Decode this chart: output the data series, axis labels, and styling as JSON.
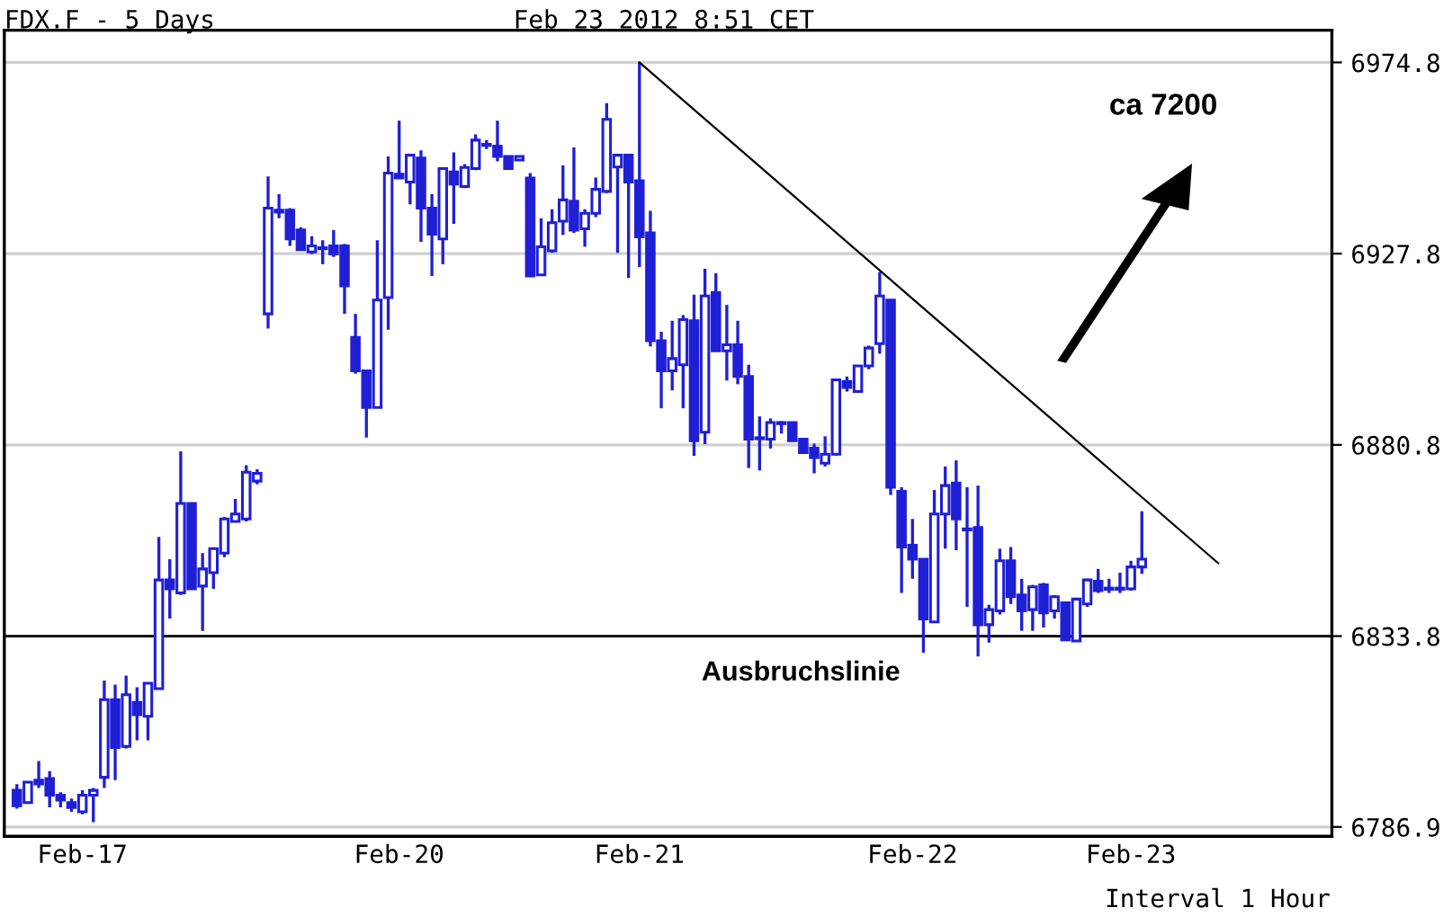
{
  "chart_data": {
    "type": "candlestick",
    "title": "FDX.F - 5 Days",
    "subtitle": "Feb 23 2012 8:51 CET",
    "annotations": [
      "ca 7200",
      "Interval 1 Hour"
    ],
    "categories": [
      null,
      null,
      null,
      null,
      null,
      null,
      "Feb-17",
      null,
      null,
      null,
      null,
      null,
      null,
      null,
      null,
      null,
      null,
      null,
      null,
      null,
      null,
      null,
      null,
      null,
      null,
      null,
      null,
      null,
      null,
      null,
      null,
      null,
      null,
      null,
      null,
      "Feb-20",
      null,
      null,
      null,
      null,
      null,
      null,
      null,
      null,
      null,
      null,
      null,
      null,
      null,
      null,
      null,
      null,
      null,
      null,
      null,
      null,
      null,
      "Feb-21",
      null,
      null,
      null,
      null,
      null,
      null,
      null,
      null,
      null,
      null,
      null,
      null,
      null,
      null,
      null,
      null,
      null,
      null,
      null,
      null,
      null,
      null,
      null,
      null,
      "Feb-22",
      null,
      null,
      null,
      null,
      null,
      null,
      null,
      null,
      null,
      null,
      null,
      null,
      null,
      null,
      null,
      null,
      null,
      null,
      null,
      "Feb-23",
      null,
      null,
      null,
      null,
      null,
      null,
      null,
      null,
      null,
      null,
      null,
      null,
      null,
      null,
      null,
      null,
      null,
      null
    ],
    "color": "#1f1fd6",
    "ohlc": [
      [
        6795.9,
        6797.4,
        6791.4,
        6792.1
      ],
      [
        6792.9,
        6797.9,
        6792.9,
        6797.9
      ],
      [
        6798.4,
        6803.1,
        6796.5,
        6797.5
      ],
      [
        6798.8,
        6800.6,
        6791.7,
        6794.7
      ],
      [
        6794.7,
        6795.4,
        6791.7,
        6793.5
      ],
      [
        6792.9,
        6793.9,
        6790.6,
        6791.7
      ],
      [
        6790.6,
        6795.9,
        6790.0,
        6794.7
      ],
      [
        6794.7,
        6796.5,
        6788.1,
        6795.9
      ],
      [
        6799.1,
        6822.9,
        6796.5,
        6818.2
      ],
      [
        6818.2,
        6821.9,
        6798.4,
        6806.4
      ],
      [
        6806.7,
        6824.1,
        6806.2,
        6819.4
      ],
      [
        6817.5,
        6821.2,
        6808.2,
        6814.5
      ],
      [
        6814.1,
        6822.2,
        6808.2,
        6822.2
      ],
      [
        6820.9,
        6858.2,
        6820.9,
        6847.6
      ],
      [
        6847.6,
        6852.7,
        6838.1,
        6845.4
      ],
      [
        6844.4,
        6879.2,
        6843.9,
        6866.4
      ],
      [
        6866.4,
        6866.4,
        6845.4,
        6845.4
      ],
      [
        6846.1,
        6854.2,
        6835.1,
        6850.3
      ],
      [
        6849.4,
        6855.3,
        6845.4,
        6855.3
      ],
      [
        6854.2,
        6863.1,
        6853.2,
        6862.6
      ],
      [
        6862.0,
        6867.5,
        6862.0,
        6863.8
      ],
      [
        6862.6,
        6875.8,
        6862.0,
        6874.1
      ],
      [
        6871.9,
        6874.8,
        6871.1,
        6873.8
      ],
      [
        6913.0,
        6946.8,
        6909.4,
        6939.0
      ],
      [
        6938.5,
        6942.4,
        6936.5,
        6938.0
      ],
      [
        6938.5,
        6939.0,
        6929.7,
        6931.4
      ],
      [
        6933.6,
        6934.3,
        6928.5,
        6928.8
      ],
      [
        6928.2,
        6932.1,
        6927.7,
        6929.7
      ],
      [
        6929.2,
        6931.1,
        6925.2,
        6929.0
      ],
      [
        6929.7,
        6933.6,
        6927.0,
        6927.7
      ],
      [
        6929.7,
        6930.2,
        6913.0,
        6919.9
      ],
      [
        6907.2,
        6913.0,
        6898.3,
        6899.0
      ],
      [
        6899.0,
        6899.0,
        6882.6,
        6890.0
      ],
      [
        6890.0,
        6931.1,
        6890.0,
        6916.4
      ],
      [
        6917.0,
        6951.7,
        6909.1,
        6947.6
      ],
      [
        6947.3,
        6960.5,
        6946.4,
        6946.4
      ],
      [
        6945.4,
        6952.0,
        6939.9,
        6952.0
      ],
      [
        6951.3,
        6953.2,
        6930.7,
        6939.0
      ],
      [
        6939.0,
        6942.4,
        6922.3,
        6932.6
      ],
      [
        6931.4,
        6949.0,
        6925.2,
        6948.7
      ],
      [
        6947.9,
        6952.7,
        6935.1,
        6944.9
      ],
      [
        6944.3,
        6949.8,
        6943.9,
        6949.0
      ],
      [
        6948.7,
        6957.1,
        6948.3,
        6955.7
      ],
      [
        6954.6,
        6955.7,
        6953.5,
        6954.4
      ],
      [
        6954.2,
        6960.5,
        6950.5,
        6951.7
      ],
      [
        6951.7,
        6951.7,
        6948.7,
        6948.7
      ],
      [
        6950.8,
        6951.7,
        6950.8,
        6951.7
      ],
      [
        6946.4,
        6947.6,
        6922.3,
        6922.3
      ],
      [
        6922.6,
        6936.5,
        6922.6,
        6929.5
      ],
      [
        6928.5,
        6938.7,
        6928.0,
        6935.4
      ],
      [
        6935.8,
        6949.5,
        6932.4,
        6941.0
      ],
      [
        6940.7,
        6953.9,
        6932.9,
        6933.6
      ],
      [
        6933.9,
        6938.7,
        6929.5,
        6937.7
      ],
      [
        6937.7,
        6946.5,
        6936.8,
        6943.6
      ],
      [
        6943.1,
        6964.8,
        6942.7,
        6960.8
      ],
      [
        6949.1,
        6952.0,
        6928.0,
        6952.0
      ],
      [
        6952.0,
        6952.0,
        6921.8,
        6945.4
      ],
      [
        6945.7,
        6974.8,
        6924.5,
        6931.9
      ],
      [
        6932.9,
        6938.3,
        6905.0,
        6906.4
      ],
      [
        6906.4,
        6908.6,
        6889.8,
        6899.0
      ],
      [
        6899.0,
        6911.3,
        6894.2,
        6902.0
      ],
      [
        6900.5,
        6912.7,
        6889.8,
        6911.6
      ],
      [
        6911.3,
        6917.7,
        6878.1,
        6881.8
      ],
      [
        6883.9,
        6924.1,
        6881.0,
        6917.4
      ],
      [
        6918.2,
        6923.0,
        6903.9,
        6903.9
      ],
      [
        6903.9,
        6915.2,
        6896.6,
        6905.4
      ],
      [
        6905.4,
        6911.3,
        6895.7,
        6897.6
      ],
      [
        6897.6,
        6900.5,
        6875.1,
        6882.2
      ],
      [
        6882.5,
        6887.8,
        6874.5,
        6882.3
      ],
      [
        6882.2,
        6887.3,
        6879.9,
        6886.3
      ],
      [
        6886.3,
        6886.6,
        6883.6,
        6886.0
      ],
      [
        6886.3,
        6886.3,
        6881.8,
        6881.8
      ],
      [
        6882.2,
        6882.5,
        6878.8,
        6878.9
      ],
      [
        6880.0,
        6881.1,
        6873.8,
        6877.7
      ],
      [
        6876.3,
        6882.9,
        6875.5,
        6878.5
      ],
      [
        6878.5,
        6897.1,
        6878.2,
        6896.8
      ],
      [
        6896.4,
        6897.6,
        6893.9,
        6894.9
      ],
      [
        6893.9,
        6900.2,
        6893.9,
        6900.2
      ],
      [
        6900.2,
        6905.2,
        6899.4,
        6904.6
      ],
      [
        6905.7,
        6923.3,
        6903.2,
        6917.4
      ],
      [
        6916.4,
        6916.4,
        6868.5,
        6870.4
      ],
      [
        6869.4,
        6870.4,
        6844.4,
        6855.7
      ],
      [
        6856.1,
        6862.6,
        6847.9,
        6852.7
      ],
      [
        6852.7,
        6852.7,
        6829.7,
        6838.0
      ],
      [
        6837.3,
        6869.7,
        6837.3,
        6863.8
      ],
      [
        6863.8,
        6875.5,
        6855.3,
        6870.8
      ],
      [
        6871.4,
        6877.0,
        6854.9,
        6862.6
      ],
      [
        6860.1,
        6870.4,
        6841.0,
        6859.9
      ],
      [
        6860.5,
        6870.8,
        6828.8,
        6836.6
      ],
      [
        6836.6,
        6841.5,
        6832.2,
        6840.3
      ],
      [
        6840.0,
        6855.3,
        6839.1,
        6852.3
      ],
      [
        6852.3,
        6855.7,
        6841.7,
        6843.5
      ],
      [
        6843.9,
        6847.9,
        6835.1,
        6840.0
      ],
      [
        6840.3,
        6846.4,
        6835.1,
        6845.9
      ],
      [
        6846.4,
        6846.9,
        6835.9,
        6839.5
      ],
      [
        6840.0,
        6843.9,
        6838.1,
        6843.5
      ],
      [
        6842.0,
        6842.0,
        6832.9,
        6832.9
      ],
      [
        6832.6,
        6843.2,
        6832.6,
        6842.9
      ],
      [
        6841.7,
        6847.9,
        6841.0,
        6847.6
      ],
      [
        6847.3,
        6850.3,
        6844.4,
        6845.0
      ],
      [
        6845.6,
        6847.9,
        6844.4,
        6845.3
      ],
      [
        6845.6,
        6849.4,
        6844.4,
        6845.3
      ],
      [
        6845.4,
        6852.3,
        6845.0,
        6850.8
      ],
      [
        6850.8,
        6864.5,
        6849.1,
        6852.7
      ],
      null,
      null,
      null,
      null,
      null,
      null,
      null,
      null,
      null,
      null,
      null,
      null,
      null,
      null,
      null,
      null,
      null
    ],
    "series": [
      {
        "type": "line",
        "color": "#000000",
        "values": [
          null,
          null,
          null,
          null,
          null,
          null,
          null,
          null,
          null,
          null,
          null,
          null,
          null,
          null,
          null,
          null,
          null,
          null,
          null,
          null,
          null,
          null,
          null,
          null,
          null,
          null,
          null,
          null,
          null,
          null,
          null,
          null,
          null,
          null,
          null,
          null,
          null,
          null,
          null,
          null,
          null,
          null,
          null,
          null,
          null,
          null,
          null,
          null,
          null,
          null,
          null,
          null,
          null,
          null,
          null,
          null,
          null,
          6974.8,
          null,
          null,
          null,
          null,
          null,
          null,
          null,
          null,
          null,
          null,
          null,
          null,
          null,
          null,
          null,
          null,
          null,
          null,
          null,
          null,
          null,
          null,
          null,
          null,
          null,
          null,
          null,
          null,
          null,
          null,
          null,
          null,
          null,
          null,
          null,
          null,
          null,
          null,
          null,
          null,
          null,
          null,
          null,
          null,
          null,
          null,
          null,
          null,
          null,
          null,
          null,
          null,
          6851.7,
          null,
          null,
          null,
          null,
          null,
          null,
          null,
          null,
          null,
          null
        ]
      }
    ],
    "ref_lines": [
      {
        "axis": "y",
        "value": 6833.8,
        "label": "Ausbruchslinie",
        "color": "#000000"
      }
    ],
    "ylim": [
      6784.6,
      6982.7
    ],
    "yticks": [
      6786.9,
      6833.8,
      6880.8,
      6927.8,
      6974.8
    ],
    "grid": "y"
  }
}
